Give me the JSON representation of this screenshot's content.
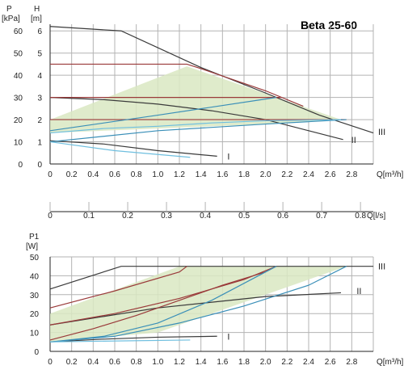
{
  "title": "Beta 25-60",
  "colors": {
    "grid": "#b3b3b3",
    "fill": "#d9e8c2",
    "dark": "#3a3a3a",
    "red": "#9a3a3a",
    "blue": "#3a8fb8",
    "lightblue": "#6fbfdf"
  },
  "chart_data": [
    {
      "type": "line",
      "xlabel": "Q[m³/h]",
      "ylabel": "H",
      "ylabel_unit": "[m]",
      "y2label": "P",
      "y2label_unit": "[kPa]",
      "x_ticks": [
        "0",
        "0.2",
        "0.4",
        "0.6",
        "0.8",
        "1.0",
        "1.2",
        "1.4",
        "1.6",
        "1.8",
        "2.0",
        "2.2",
        "2.4",
        "2.6",
        "2.8"
      ],
      "y_ticks": [
        "0",
        "1",
        "2",
        "3",
        "4",
        "5",
        "6"
      ],
      "y2_ticks": [
        "0",
        "10",
        "20",
        "30",
        "40",
        "50",
        "60"
      ],
      "xlim": [
        0,
        3.0
      ],
      "ylim": [
        0,
        6.3
      ],
      "grid": true,
      "shaded_region": [
        [
          0,
          2.0
        ],
        [
          1.27,
          4.4
        ],
        [
          2.7,
          2.0
        ],
        [
          2.0,
          1.8
        ],
        [
          0,
          1.4
        ]
      ],
      "curve_labels": [
        {
          "text": "I",
          "x": 1.6,
          "y": 0.35
        },
        {
          "text": "II",
          "x": 2.75,
          "y": 1.1
        },
        {
          "text": "III",
          "x": 3.0,
          "y": 1.45
        }
      ],
      "series": [
        {
          "color": "dark",
          "x": [
            0,
            0.66,
            1.4,
            2.0,
            2.5,
            3.0
          ],
          "y": [
            6.2,
            6.0,
            4.35,
            3.2,
            2.2,
            1.4
          ]
        },
        {
          "color": "dark",
          "x": [
            0,
            0.5,
            1.0,
            1.5,
            2.0,
            2.4,
            2.72
          ],
          "y": [
            3.0,
            2.9,
            2.7,
            2.4,
            2.0,
            1.5,
            1.1
          ]
        },
        {
          "color": "dark",
          "x": [
            0,
            0.5,
            1.0,
            1.55
          ],
          "y": [
            1.05,
            0.9,
            0.6,
            0.35
          ]
        },
        {
          "color": "red",
          "x": [
            0,
            1.27,
            1.4,
            2.0,
            2.35
          ],
          "y": [
            4.5,
            4.5,
            4.3,
            3.3,
            2.6
          ]
        },
        {
          "color": "red",
          "x": [
            0,
            2.15
          ],
          "y": [
            3.0,
            3.0
          ]
        },
        {
          "color": "red",
          "x": [
            0,
            2.75
          ],
          "y": [
            2.0,
            2.0
          ]
        },
        {
          "color": "blue",
          "x": [
            0,
            1.0,
            2.1
          ],
          "y": [
            1.5,
            2.2,
            3.0
          ]
        },
        {
          "color": "blue",
          "x": [
            0,
            1.0,
            2.0,
            2.75
          ],
          "y": [
            1.0,
            1.5,
            1.8,
            2.0
          ]
        },
        {
          "color": "lightblue",
          "x": [
            0,
            0.6,
            1.3
          ],
          "y": [
            1.0,
            0.6,
            0.3
          ]
        },
        {
          "color": "lightblue",
          "x": [
            0,
            0.5,
            1.0,
            1.5,
            2.0,
            2.7
          ],
          "y": [
            1.4,
            1.6,
            1.7,
            1.85,
            1.95,
            2.0
          ]
        }
      ]
    },
    {
      "type": "axis",
      "xlabel": "Q[l/s]",
      "x_ticks": [
        "0",
        "0.1",
        "0.2",
        "0.3",
        "0.4",
        "0.5",
        "0.6",
        "0.7",
        "0.8"
      ],
      "xlim": [
        0,
        0.833
      ]
    },
    {
      "type": "line",
      "xlabel": "Q[m³/h]",
      "ylabel": "P1",
      "ylabel_unit": "[W]",
      "x_ticks": [
        "0",
        "0.2",
        "0.4",
        "0.6",
        "0.8",
        "1.0",
        "1.2",
        "1.4",
        "1.6",
        "1.8",
        "2.0",
        "2.2",
        "2.4",
        "2.6",
        "2.8"
      ],
      "y_ticks": [
        "0",
        "10",
        "20",
        "30",
        "40",
        "50"
      ],
      "xlim": [
        0,
        3.0
      ],
      "ylim": [
        0,
        50
      ],
      "grid": true,
      "shaded_region": [
        [
          0,
          5
        ],
        [
          0,
          20
        ],
        [
          1.2,
          45
        ],
        [
          2.75,
          45
        ],
        [
          2.0,
          30
        ],
        [
          1.0,
          10
        ]
      ],
      "curve_labels": [
        {
          "text": "III",
          "x": 3.0,
          "y": 45
        },
        {
          "text": "II",
          "x": 2.8,
          "y": 32
        },
        {
          "text": "I",
          "x": 1.6,
          "y": 8
        }
      ],
      "series": [
        {
          "color": "dark",
          "x": [
            0,
            0.66,
            3.0
          ],
          "y": [
            33,
            45,
            45
          ]
        },
        {
          "color": "dark",
          "x": [
            0,
            1.0,
            2.0,
            2.7
          ],
          "y": [
            14,
            23,
            29,
            31
          ]
        },
        {
          "color": "dark",
          "x": [
            0,
            0.5,
            1.0,
            1.55
          ],
          "y": [
            5,
            6.5,
            7.5,
            8
          ]
        },
        {
          "color": "red",
          "x": [
            0,
            0.6,
            1.2,
            1.27
          ],
          "y": [
            23,
            32,
            42,
            45
          ]
        },
        {
          "color": "red",
          "x": [
            0,
            0.6,
            1.2,
            1.8,
            2.1
          ],
          "y": [
            14,
            20,
            28,
            38,
            45
          ]
        },
        {
          "color": "red",
          "x": [
            0,
            0.4,
            0.8,
            1.2,
            1.6,
            2.0
          ],
          "y": [
            6,
            12,
            19,
            27,
            35,
            42
          ]
        },
        {
          "color": "blue",
          "x": [
            0,
            0.5,
            1.0,
            1.5,
            2.1
          ],
          "y": [
            5,
            8,
            15,
            27,
            45
          ]
        },
        {
          "color": "blue",
          "x": [
            0,
            0.6,
            1.2,
            1.8,
            2.4,
            2.75
          ],
          "y": [
            5,
            8,
            15,
            24,
            35,
            45
          ]
        },
        {
          "color": "lightblue",
          "x": [
            0,
            0.6,
            1.3
          ],
          "y": [
            5,
            5.5,
            6
          ]
        }
      ]
    }
  ]
}
